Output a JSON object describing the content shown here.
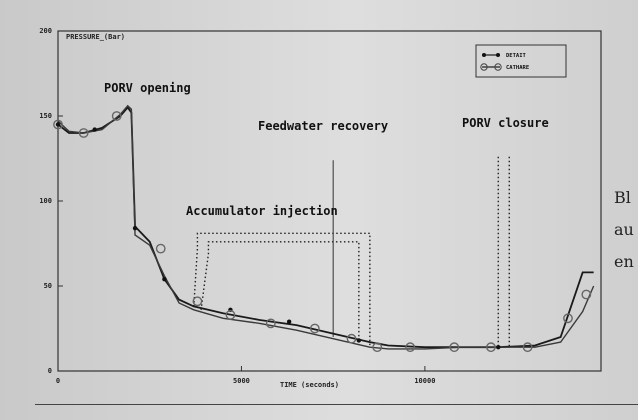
{
  "chart_data": {
    "type": "line",
    "title": "PRESSURE_(Bar)",
    "xlabel": "TIME (seconds)",
    "ylabel": "",
    "xlim": [
      0,
      14800
    ],
    "ylim": [
      0,
      200
    ],
    "x_ticks": [
      0,
      5000,
      10000
    ],
    "y_ticks": [
      0,
      50,
      100,
      150,
      200
    ],
    "x_tick_labels": [
      "0",
      "5000",
      "10000"
    ],
    "y_tick_labels": [
      "0",
      "50",
      "100",
      "150",
      "200"
    ],
    "legend_position": "top-right",
    "grid": false,
    "series": [
      {
        "name": "DETAIT",
        "marker": "filled-dot",
        "color": "#1a1a1a",
        "x": [
          0,
          300,
          700,
          1200,
          1700,
          1900,
          2000,
          2100,
          2500,
          2900,
          3300,
          3700,
          4500,
          5500,
          6500,
          7500,
          8500,
          9000,
          10000,
          11000,
          12000,
          13000,
          13700,
          14300,
          14600
        ],
        "y": [
          145,
          140,
          140,
          143,
          150,
          155,
          152,
          85,
          76,
          54,
          42,
          38,
          34,
          30,
          27,
          22,
          17,
          15,
          14,
          14,
          14,
          15,
          20,
          58,
          58
        ],
        "marker_x": [
          0,
          1000,
          2100,
          2900,
          4700,
          6300,
          8200,
          12000
        ],
        "marker_y": [
          145,
          142,
          84,
          54,
          36,
          29,
          18,
          14
        ]
      },
      {
        "name": "CATHARE",
        "marker": "open-circle",
        "color": "#3a3a3a",
        "x": [
          0,
          300,
          700,
          1200,
          1700,
          1900,
          2000,
          2100,
          2500,
          2900,
          3300,
          3700,
          4500,
          5500,
          6500,
          7500,
          8500,
          9000,
          10000,
          11000,
          12000,
          13000,
          13700,
          14300,
          14600
        ],
        "y": [
          147,
          141,
          140,
          142,
          151,
          156,
          154,
          80,
          74,
          56,
          40,
          36,
          31,
          28,
          24,
          19,
          14,
          13,
          13,
          14,
          14,
          14,
          17,
          35,
          50
        ],
        "marker_x": [
          0,
          700,
          1600,
          2800,
          3800,
          4700,
          5800,
          7000,
          8000,
          8700,
          9600,
          10800,
          11800,
          12800,
          13900,
          14400
        ],
        "marker_y": [
          145,
          140,
          150,
          72,
          41,
          33,
          28,
          25,
          19,
          14,
          14,
          14,
          14,
          14,
          31,
          45
        ]
      }
    ],
    "annotations": [
      {
        "text": "PORV opening",
        "x": 1200,
        "y": 154
      },
      {
        "text": "Feedwater recovery",
        "x": 5400,
        "y": 130,
        "line_x": 7500
      },
      {
        "text": "PORV closure",
        "x": 10800,
        "y": 132,
        "line_x": [
          12000,
          12300
        ]
      },
      {
        "text": "Accumulator injection",
        "x": 3400,
        "y": 86
      }
    ]
  },
  "side_text": [
    "Bl",
    "au",
    "en"
  ]
}
